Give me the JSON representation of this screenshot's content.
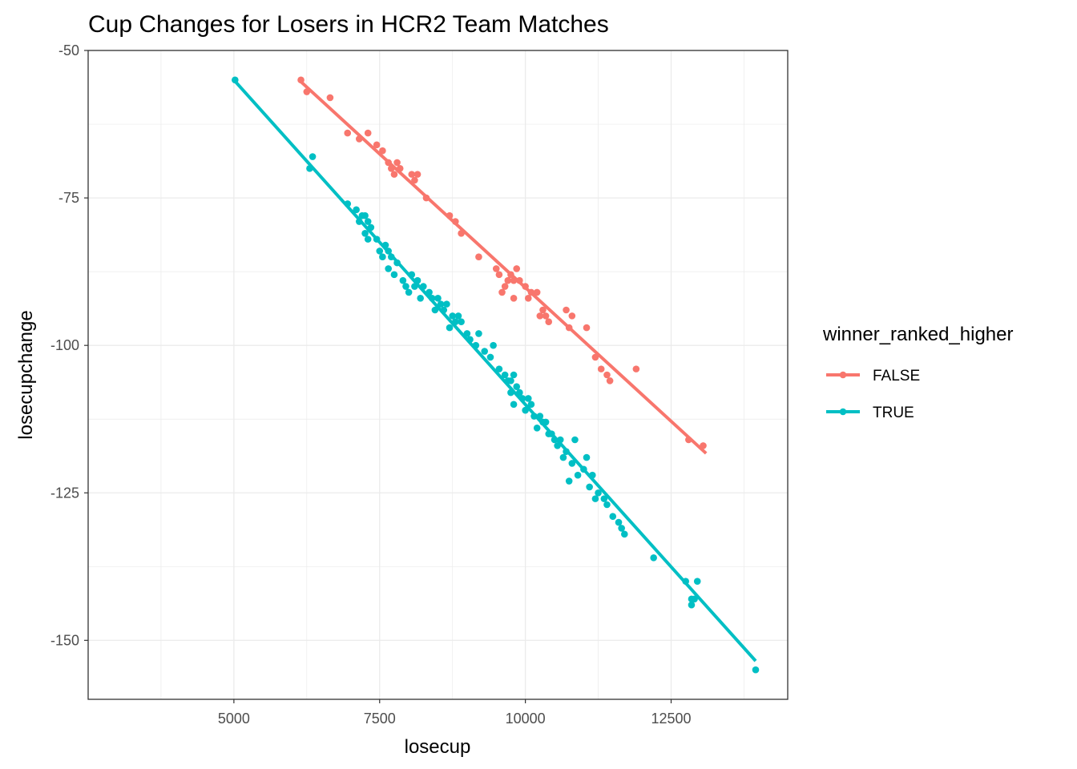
{
  "chart_data": {
    "type": "scatter",
    "title": "Cup Changes for Losers in HCR2 Team Matches",
    "xlabel": "losecup",
    "ylabel": "losecupchange",
    "xlim": [
      2500,
      14500
    ],
    "ylim": [
      -160,
      -50
    ],
    "x_ticks": [
      5000,
      7500,
      10000,
      12500
    ],
    "x_tick_labels": [
      "5000",
      "7500",
      "10000",
      "12500"
    ],
    "y_ticks": [
      -50,
      -75,
      -100,
      -125,
      -150
    ],
    "y_tick_labels": [
      "-50",
      "-75",
      "-100",
      "-125",
      "-150"
    ],
    "grid": true,
    "legend": {
      "title": "winner_ranked_higher",
      "position": "right"
    },
    "series": [
      {
        "name": "FALSE",
        "color": "#F8766D",
        "fit": {
          "x": [
            6150,
            13100
          ],
          "y": [
            -55.3,
            -118.3
          ]
        },
        "points": [
          [
            6150,
            -55
          ],
          [
            6250,
            -57
          ],
          [
            6650,
            -58
          ],
          [
            6950,
            -64
          ],
          [
            7150,
            -65
          ],
          [
            7300,
            -64
          ],
          [
            7450,
            -66
          ],
          [
            7550,
            -67
          ],
          [
            7650,
            -69
          ],
          [
            7700,
            -70
          ],
          [
            7750,
            -71
          ],
          [
            7800,
            -69
          ],
          [
            7850,
            -70
          ],
          [
            8050,
            -71
          ],
          [
            8100,
            -72
          ],
          [
            8150,
            -71
          ],
          [
            8300,
            -75
          ],
          [
            8700,
            -78
          ],
          [
            8800,
            -79
          ],
          [
            8900,
            -81
          ],
          [
            9200,
            -85
          ],
          [
            9500,
            -87
          ],
          [
            9550,
            -88
          ],
          [
            9750,
            -88
          ],
          [
            9850,
            -87
          ],
          [
            9700,
            -89
          ],
          [
            9800,
            -89
          ],
          [
            9900,
            -89
          ],
          [
            9650,
            -90
          ],
          [
            9600,
            -91
          ],
          [
            9800,
            -92
          ],
          [
            10000,
            -90
          ],
          [
            10100,
            -91
          ],
          [
            10200,
            -91
          ],
          [
            10050,
            -92
          ],
          [
            10300,
            -94
          ],
          [
            10250,
            -95
          ],
          [
            10350,
            -95
          ],
          [
            10400,
            -96
          ],
          [
            10700,
            -94
          ],
          [
            10750,
            -97
          ],
          [
            10800,
            -95
          ],
          [
            11050,
            -97
          ],
          [
            11200,
            -102
          ],
          [
            11300,
            -104
          ],
          [
            11400,
            -105
          ],
          [
            11450,
            -106
          ],
          [
            11900,
            -104
          ],
          [
            12800,
            -116
          ],
          [
            13050,
            -117
          ]
        ]
      },
      {
        "name": "TRUE",
        "color": "#00BFC4",
        "fit": {
          "x": [
            5000,
            13950
          ],
          "y": [
            -55,
            -153.5
          ]
        },
        "points": [
          [
            5020,
            -55
          ],
          [
            6300,
            -70
          ],
          [
            6350,
            -68
          ],
          [
            6950,
            -76
          ],
          [
            7100,
            -77
          ],
          [
            7200,
            -78
          ],
          [
            7250,
            -78
          ],
          [
            7300,
            -79
          ],
          [
            7150,
            -79
          ],
          [
            7350,
            -80
          ],
          [
            7250,
            -81
          ],
          [
            7300,
            -82
          ],
          [
            7450,
            -82
          ],
          [
            7600,
            -83
          ],
          [
            7650,
            -84
          ],
          [
            7500,
            -84
          ],
          [
            7550,
            -85
          ],
          [
            7700,
            -85
          ],
          [
            7800,
            -86
          ],
          [
            7650,
            -87
          ],
          [
            7750,
            -88
          ],
          [
            7900,
            -89
          ],
          [
            8050,
            -88
          ],
          [
            7950,
            -90
          ],
          [
            8150,
            -89
          ],
          [
            8100,
            -90
          ],
          [
            8000,
            -91
          ],
          [
            8250,
            -90
          ],
          [
            8350,
            -91
          ],
          [
            8200,
            -92
          ],
          [
            8400,
            -92
          ],
          [
            8500,
            -92
          ],
          [
            8550,
            -93
          ],
          [
            8650,
            -93
          ],
          [
            8450,
            -94
          ],
          [
            8600,
            -94
          ],
          [
            8750,
            -95
          ],
          [
            8850,
            -95
          ],
          [
            8800,
            -96
          ],
          [
            8900,
            -96
          ],
          [
            8700,
            -97
          ],
          [
            9000,
            -98
          ],
          [
            9050,
            -99
          ],
          [
            9200,
            -98
          ],
          [
            9150,
            -100
          ],
          [
            9300,
            -101
          ],
          [
            9450,
            -100
          ],
          [
            9400,
            -102
          ],
          [
            9550,
            -104
          ],
          [
            9650,
            -105
          ],
          [
            9700,
            -106
          ],
          [
            9750,
            -106
          ],
          [
            9800,
            -105
          ],
          [
            9850,
            -107
          ],
          [
            9750,
            -108
          ],
          [
            9900,
            -108
          ],
          [
            9950,
            -109
          ],
          [
            10050,
            -109
          ],
          [
            9800,
            -110
          ],
          [
            10100,
            -110
          ],
          [
            10000,
            -111
          ],
          [
            10150,
            -112
          ],
          [
            10250,
            -112
          ],
          [
            10300,
            -113
          ],
          [
            10350,
            -113
          ],
          [
            10200,
            -114
          ],
          [
            10400,
            -115
          ],
          [
            10450,
            -115
          ],
          [
            10500,
            -116
          ],
          [
            10600,
            -116
          ],
          [
            10550,
            -117
          ],
          [
            10700,
            -118
          ],
          [
            10850,
            -116
          ],
          [
            10650,
            -119
          ],
          [
            10800,
            -120
          ],
          [
            11050,
            -119
          ],
          [
            11000,
            -121
          ],
          [
            11150,
            -122
          ],
          [
            10900,
            -122
          ],
          [
            10750,
            -123
          ],
          [
            11100,
            -124
          ],
          [
            11250,
            -125
          ],
          [
            11200,
            -126
          ],
          [
            11350,
            -126
          ],
          [
            11400,
            -127
          ],
          [
            11500,
            -129
          ],
          [
            11600,
            -130
          ],
          [
            11650,
            -131
          ],
          [
            11700,
            -132
          ],
          [
            12200,
            -136
          ],
          [
            12750,
            -140
          ],
          [
            12950,
            -140
          ],
          [
            12850,
            -143
          ],
          [
            12900,
            -143
          ],
          [
            12850,
            -144
          ],
          [
            13950,
            -155
          ]
        ]
      }
    ]
  }
}
